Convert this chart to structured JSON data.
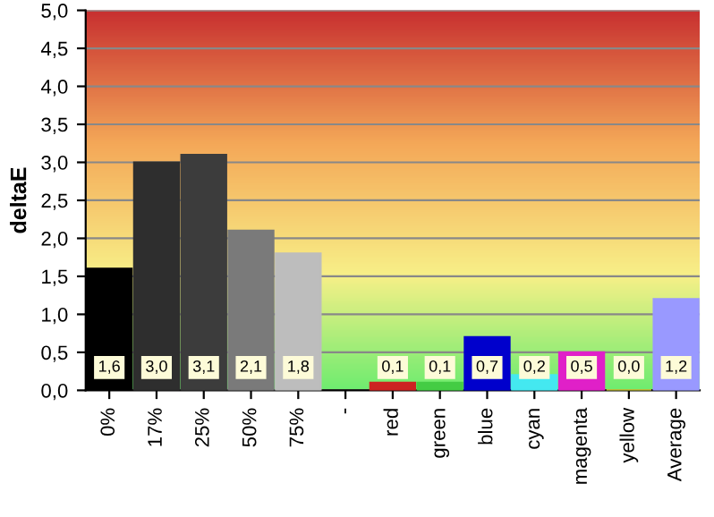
{
  "chart_data": {
    "type": "bar",
    "ylabel": "deltaE",
    "categories": [
      "0%",
      "17%",
      "25%",
      "50%",
      "75%",
      "-",
      "red",
      "green",
      "blue",
      "cyan",
      "magenta",
      "yellow",
      "Average"
    ],
    "values": [
      1.6,
      3.0,
      3.1,
      2.1,
      1.8,
      null,
      0.1,
      0.1,
      0.7,
      0.2,
      0.5,
      0.0,
      1.2
    ],
    "colors": [
      "#000000",
      "#2e2e2e",
      "#3c3c3c",
      "#7a7a7a",
      "#bdbdbd",
      "#ffffff",
      "#cc2222",
      "#44cc44",
      "#0000cc",
      "#44e8f0",
      "#e020c8",
      "#f0f040",
      "#9999ff"
    ],
    "value_labels": [
      "1,6",
      "3,0",
      "3,1",
      "2,1",
      "1,8",
      null,
      "0,1",
      "0,1",
      "0,7",
      "0,2",
      "0,5",
      "0,0",
      "1,2"
    ],
    "ylim": [
      0,
      5
    ],
    "yticks": [
      {
        "value": 0,
        "label": "0,0"
      },
      {
        "value": 0.5,
        "label": "0,5"
      },
      {
        "value": 1,
        "label": "1,0"
      },
      {
        "value": 1.5,
        "label": "1,5"
      },
      {
        "value": 2,
        "label": "2,0"
      },
      {
        "value": 2.5,
        "label": "2,5"
      },
      {
        "value": 3,
        "label": "3,0"
      },
      {
        "value": 3.5,
        "label": "3,5"
      },
      {
        "value": 4,
        "label": "4,0"
      },
      {
        "value": 4.5,
        "label": "4,5"
      },
      {
        "value": 5,
        "label": "5,0"
      }
    ],
    "grid": "y",
    "legend": false
  }
}
